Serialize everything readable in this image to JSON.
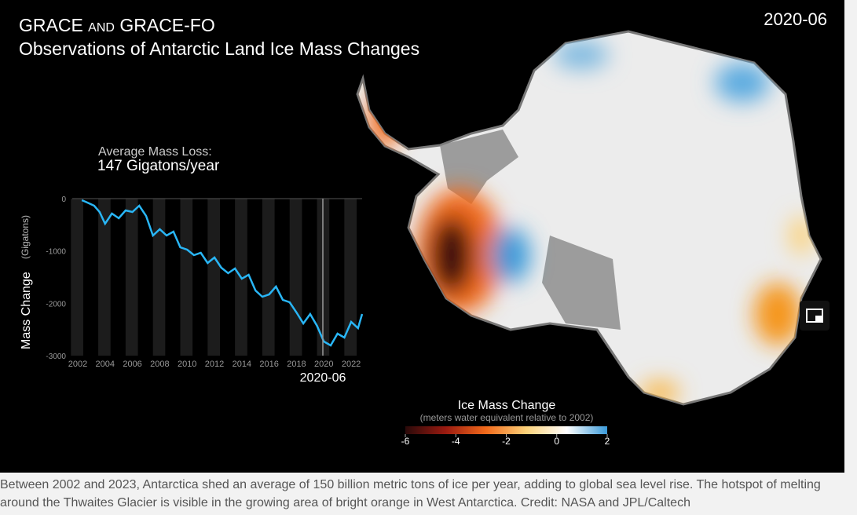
{
  "header": {
    "title_line1": "GRACE and GRACE-FO",
    "title_line2": "Observations of Antarctic Land Ice Mass Changes",
    "date": "2020-06"
  },
  "chart_data": {
    "type": "line",
    "subtitle": "Average Mass Loss:",
    "annotation": "147 Gigatons/year",
    "y_label": "Mass Change",
    "y_unit": "(Gigatons)",
    "current_label": "2020-06",
    "x": [
      2002.3,
      2002.7,
      2003.2,
      2003.6,
      2004.0,
      2004.5,
      2005.0,
      2005.5,
      2006.0,
      2006.5,
      2007.0,
      2007.5,
      2008.0,
      2008.5,
      2009.0,
      2009.5,
      2010.0,
      2010.5,
      2011.0,
      2011.5,
      2012.0,
      2012.5,
      2013.0,
      2013.5,
      2014.0,
      2014.5,
      2015.0,
      2015.5,
      2016.0,
      2016.5,
      2017.0,
      2017.5,
      2018.0,
      2018.5,
      2019.0,
      2019.5,
      2020.0,
      2020.5,
      2021.0,
      2021.5,
      2022.0,
      2022.5,
      2022.8
    ],
    "series": [
      {
        "name": "Mass Change",
        "color": "#29b6f6",
        "values": [
          -30,
          -75,
          -135,
          -255,
          -480,
          -285,
          -375,
          -225,
          -255,
          -135,
          -330,
          -705,
          -585,
          -705,
          -630,
          -930,
          -975,
          -1080,
          -1035,
          -1230,
          -1125,
          -1320,
          -1425,
          -1335,
          -1530,
          -1455,
          -1755,
          -1875,
          -1830,
          -1680,
          -1935,
          -1980,
          -2175,
          -2385,
          -2205,
          -2430,
          -2730,
          -2805,
          -2580,
          -2655,
          -2355,
          -2475,
          -2205
        ]
      }
    ],
    "xlim": [
      2001.6,
      2022.8
    ],
    "xticks": [
      2002,
      2004,
      2006,
      2008,
      2010,
      2012,
      2014,
      2016,
      2018,
      2020,
      2022
    ],
    "ylim": [
      -3000,
      0
    ],
    "yticks": [
      0,
      -1000,
      -2000,
      -3000
    ]
  },
  "legend": {
    "title": "Ice Mass Change",
    "subtitle": "(meters water equivalent relative to 2002)",
    "lim": [
      -6,
      2
    ],
    "ticks": [
      -6,
      -4,
      -2,
      0,
      2
    ],
    "colors": [
      "#2a0a0a",
      "#9a1a10",
      "#f26a1b",
      "#fcd27a",
      "#ffffff",
      "#3a9ad9"
    ]
  },
  "caption": "Between 2002 and 2023, Antarctica shed an average of 150 billion metric tons of ice per year, adding to global sea level rise. The hotspot of melting around the Thwaites Glacier is visible in the growing area of bright orange in West Antarctica. Credit: NASA and JPL/Caltech"
}
